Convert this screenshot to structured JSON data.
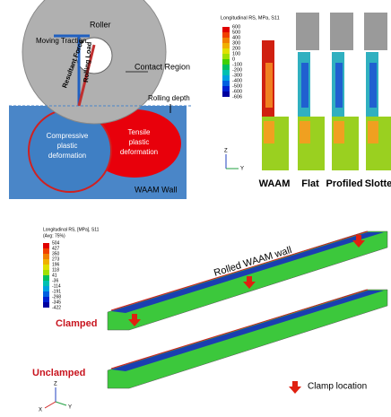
{
  "left_panel": {
    "roller": "Roller",
    "moving_traction": "Moving Traction",
    "resultant_force": "Resultant Force",
    "rolling_load": "Rolling Load",
    "contact_region": "Contact Region",
    "rolling_depth": "Rolling depth",
    "compressive": [
      "Compressive",
      "plastic",
      "deformation"
    ],
    "tensile": [
      "Tensile",
      "plastic",
      "deformation"
    ],
    "wall": "WAAM Wall"
  },
  "right_panel": {
    "legend_title": "Longitudinal RS, MPa, S11",
    "legend_values": [
      600,
      500,
      400,
      300,
      200,
      100,
      0,
      -100,
      -200,
      -300,
      -400,
      -500,
      -600,
      -606
    ],
    "columns": [
      "WAAM",
      "Flat",
      "Profiled",
      "Slotte"
    ],
    "axes": [
      "Z",
      "Y"
    ]
  },
  "bottom_panel": {
    "legend_title": "Longitudinal RS, [MPa], S11",
    "legend_subtitle": "(Avg: 75%)",
    "legend_values": [
      504,
      427,
      350,
      273,
      196,
      118,
      41,
      -36,
      -114,
      -191,
      -268,
      -345,
      -422
    ],
    "wall_label": "Rolled WAAM wall",
    "clamped": "Clamped",
    "unclamped": "Unclamped",
    "clamp_location": "Clamp location",
    "axes": [
      "Z",
      "Y",
      "X"
    ]
  }
}
